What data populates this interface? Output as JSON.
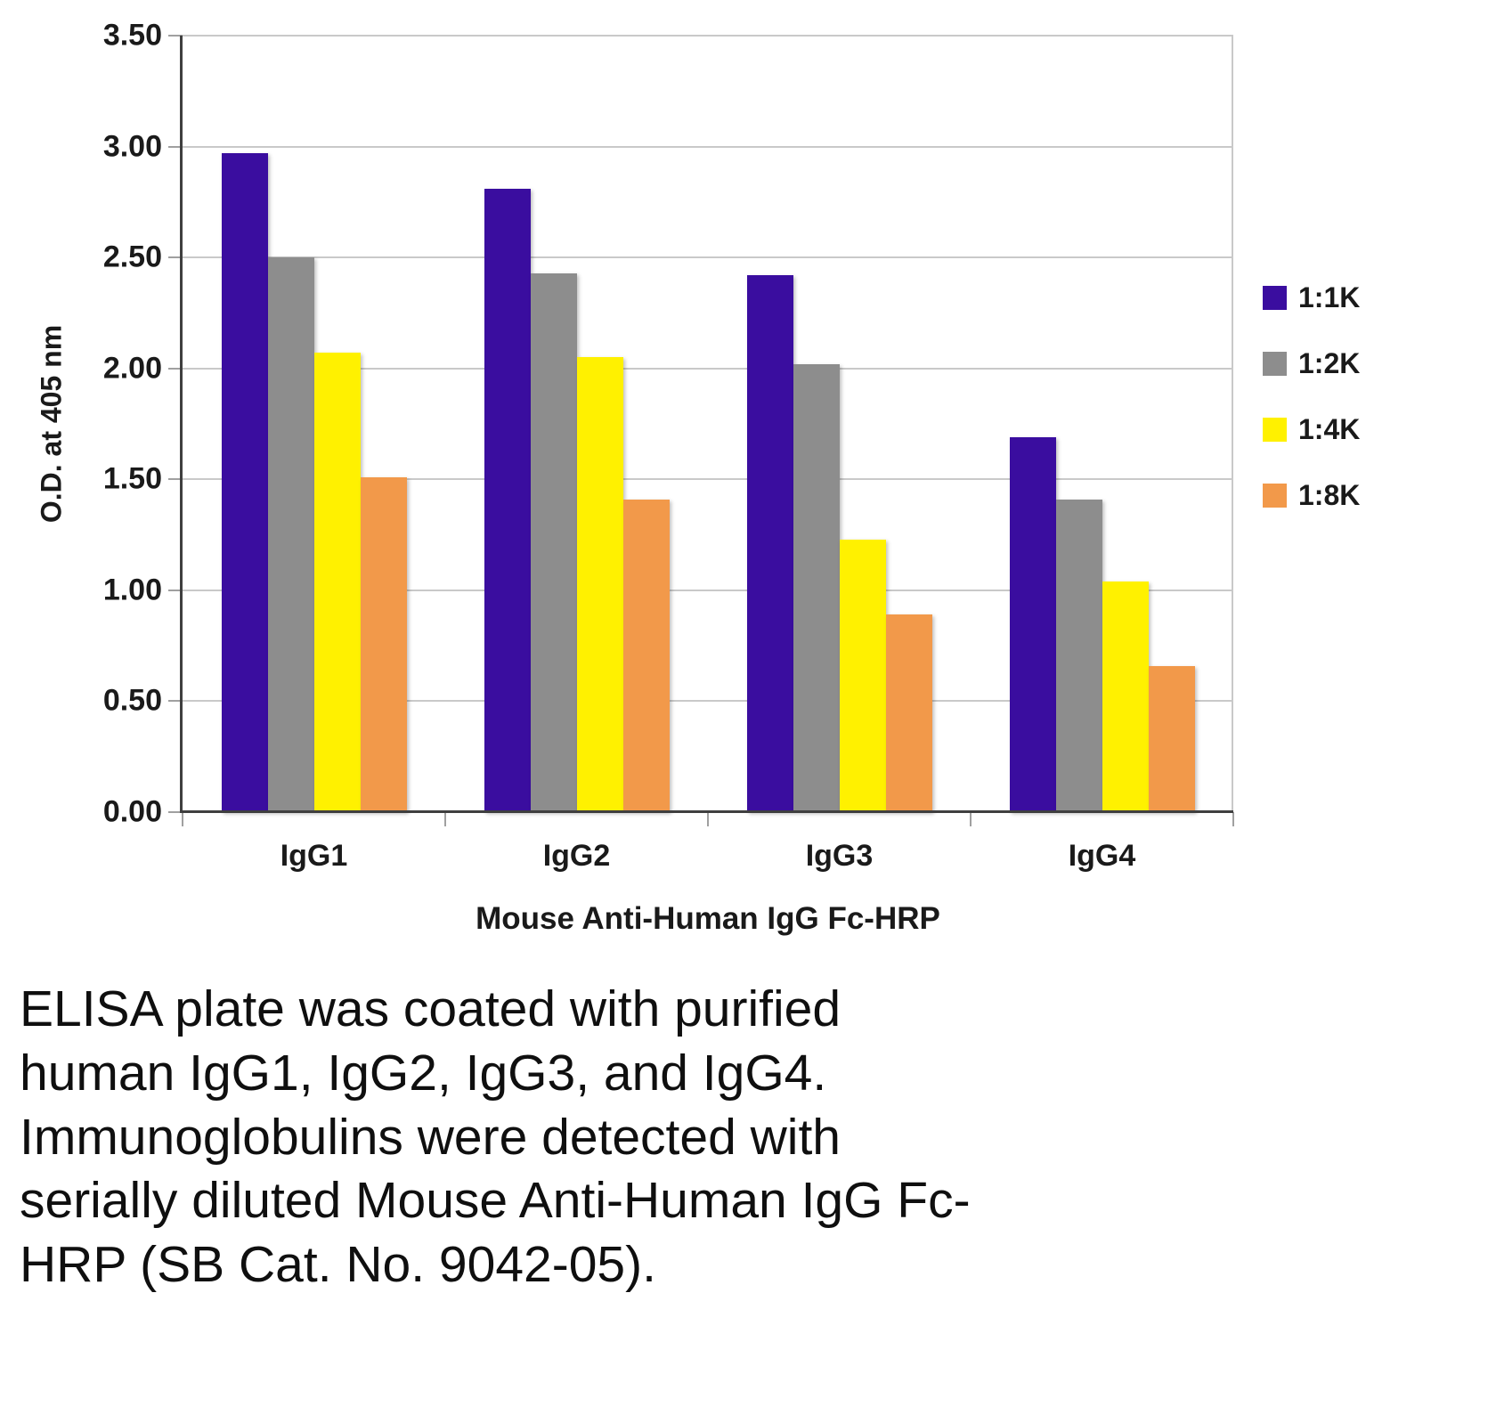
{
  "chart_data": {
    "type": "bar",
    "categories": [
      "IgG1",
      "IgG2",
      "IgG3",
      "IgG4"
    ],
    "series": [
      {
        "name": "1:1K",
        "color": "#3A0D9F",
        "values": [
          2.97,
          2.81,
          2.42,
          1.69
        ]
      },
      {
        "name": "1:2K",
        "color": "#8D8D8D",
        "values": [
          2.5,
          2.43,
          2.02,
          1.41
        ]
      },
      {
        "name": "1:4K",
        "color": "#FFF100",
        "values": [
          2.07,
          2.05,
          1.23,
          1.04
        ]
      },
      {
        "name": "1:8K",
        "color": "#F2994A",
        "values": [
          1.51,
          1.41,
          0.89,
          0.66
        ]
      }
    ],
    "title": "",
    "xlabel": "Mouse Anti-Human IgG Fc-HRP",
    "ylabel": "O.D. at 405 nm",
    "ylim": [
      0,
      3.5
    ],
    "ytick_step": 0.5,
    "yticks": [
      "3.50",
      "3.00",
      "2.50",
      "2.00",
      "1.50",
      "1.00",
      "0.50",
      "0.00"
    ],
    "grid": true,
    "legend_position": "right"
  },
  "caption": {
    "lines": [
      "ELISA plate was coated with purified",
      "human IgG1, IgG2, IgG3, and IgG4.",
      "Immunoglobulins were detected with",
      "serially diluted Mouse Anti-Human IgG Fc-",
      "HRP (SB Cat. No. 9042-05)."
    ],
    "text": "ELISA plate was coated with purified human IgG1, IgG2, IgG3, and IgG4. Immunoglobulins were detected with serially diluted Mouse Anti-Human IgG Fc-HRP (SB Cat. No. 9042-05)."
  },
  "colors": {
    "axis": "#3F3F3F",
    "gridline": "#C9C9C9",
    "background": "#FFFFFF",
    "text": "#1A1A1A"
  }
}
